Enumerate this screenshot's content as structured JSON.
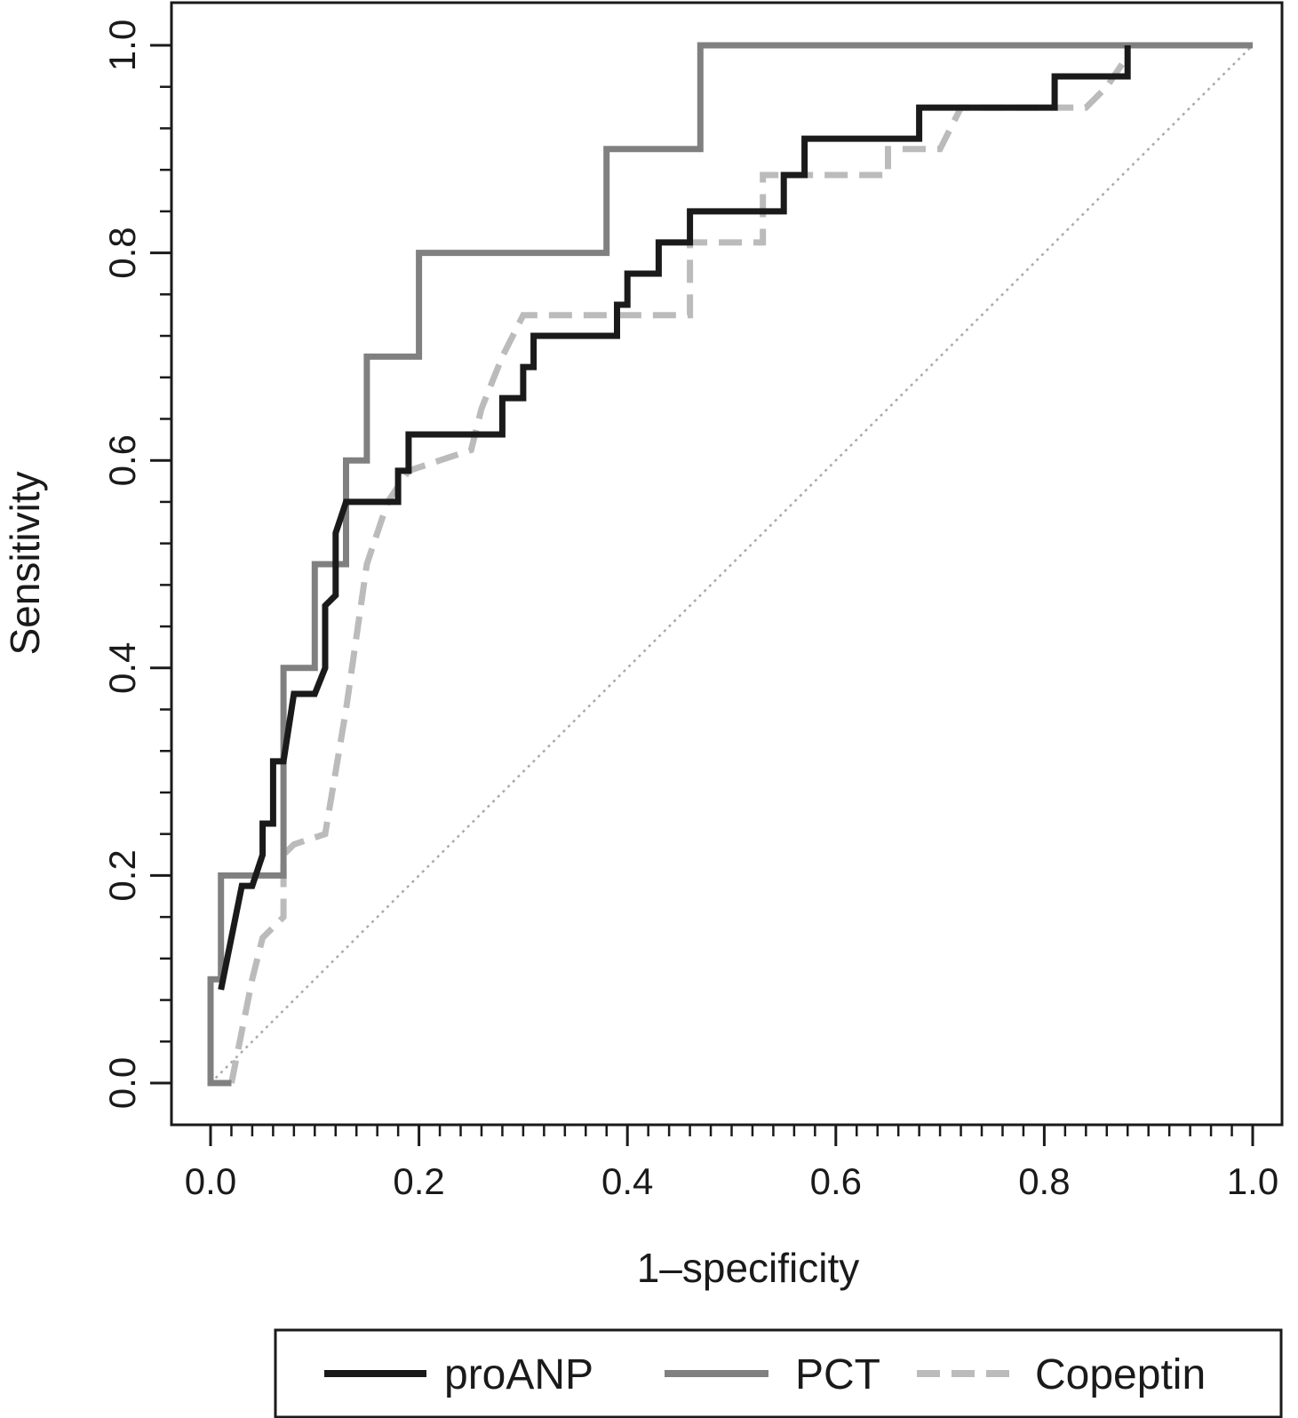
{
  "chart_data": {
    "type": "line",
    "title": "",
    "xlabel": "1–specificity",
    "ylabel": "Sensitivity",
    "xlim": [
      0,
      1
    ],
    "ylim": [
      0,
      1
    ],
    "x_ticks": [
      "0.0",
      "0.2",
      "0.4",
      "0.6",
      "0.8",
      "1.0"
    ],
    "y_ticks": [
      "0.0",
      "0.2",
      "0.4",
      "0.6",
      "0.8",
      "1.0"
    ],
    "x_minor_step": 0.02,
    "y_minor_step": 0.04,
    "grid": false,
    "legend_position": "bottom",
    "reference_line": {
      "x": [
        0,
        1
      ],
      "y": [
        0,
        1
      ],
      "color": "#aaaaaa",
      "style": "dotted"
    },
    "series": [
      {
        "name": "proANP",
        "color": "#1a1a1a",
        "style": "solid",
        "x": [
          0.01,
          0.03,
          0.04,
          0.05,
          0.05,
          0.06,
          0.06,
          0.07,
          0.08,
          0.08,
          0.1,
          0.11,
          0.11,
          0.12,
          0.12,
          0.13,
          0.18,
          0.18,
          0.19,
          0.19,
          0.28,
          0.28,
          0.3,
          0.3,
          0.31,
          0.31,
          0.39,
          0.39,
          0.4,
          0.4,
          0.43,
          0.43,
          0.46,
          0.46,
          0.55,
          0.55,
          0.57,
          0.57,
          0.68,
          0.68,
          0.81,
          0.81,
          0.88,
          0.88
        ],
        "y": [
          0.09,
          0.19,
          0.19,
          0.22,
          0.25,
          0.25,
          0.31,
          0.31,
          0.375,
          0.375,
          0.375,
          0.4,
          0.46,
          0.47,
          0.53,
          0.56,
          0.56,
          0.59,
          0.59,
          0.625,
          0.625,
          0.66,
          0.66,
          0.69,
          0.69,
          0.72,
          0.72,
          0.75,
          0.75,
          0.78,
          0.78,
          0.81,
          0.81,
          0.84,
          0.84,
          0.875,
          0.875,
          0.91,
          0.91,
          0.94,
          0.94,
          0.97,
          0.97,
          1.0
        ]
      },
      {
        "name": "PCT",
        "color": "#808080",
        "style": "solid",
        "x": [
          0.02,
          0.0,
          0.0,
          0.01,
          0.01,
          0.07,
          0.07,
          0.1,
          0.1,
          0.13,
          0.13,
          0.15,
          0.15,
          0.2,
          0.2,
          0.38,
          0.38,
          0.47,
          0.47,
          1.0
        ],
        "y": [
          0.0,
          0.0,
          0.1,
          0.1,
          0.2,
          0.2,
          0.4,
          0.4,
          0.5,
          0.5,
          0.6,
          0.6,
          0.7,
          0.7,
          0.8,
          0.8,
          0.9,
          0.9,
          1.0,
          1.0
        ]
      },
      {
        "name": "Copeptin",
        "color": "#bbbbbb",
        "style": "dashed",
        "x": [
          0.02,
          0.04,
          0.05,
          0.07,
          0.07,
          0.08,
          0.11,
          0.13,
          0.15,
          0.17,
          0.19,
          0.22,
          0.25,
          0.26,
          0.28,
          0.3,
          0.46,
          0.46,
          0.53,
          0.53,
          0.65,
          0.65,
          0.7,
          0.72,
          0.84,
          0.86,
          0.88
        ],
        "y": [
          0.0,
          0.1,
          0.14,
          0.16,
          0.22,
          0.23,
          0.24,
          0.36,
          0.5,
          0.56,
          0.59,
          0.6,
          0.61,
          0.65,
          0.7,
          0.74,
          0.74,
          0.81,
          0.81,
          0.875,
          0.875,
          0.9,
          0.9,
          0.94,
          0.94,
          0.96,
          0.99
        ]
      }
    ]
  }
}
